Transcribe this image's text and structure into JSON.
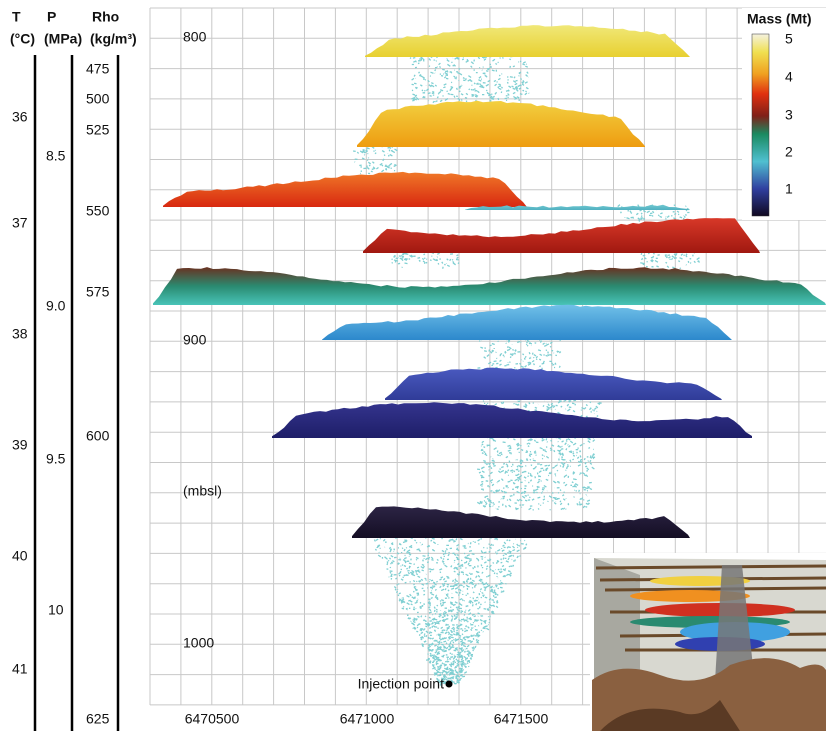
{
  "columns": {
    "temperature": {
      "title": "T",
      "unit": "(°C)",
      "ticks": [
        "36",
        "37",
        "38",
        "39",
        "40",
        "41"
      ]
    },
    "pressure": {
      "title": "P",
      "unit": "(MPa)",
      "ticks": [
        "8.5",
        "9.0",
        "9.5",
        "10"
      ]
    },
    "density": {
      "title": "Rho",
      "unit": "(kg/m³)",
      "ticks": [
        "475",
        "500",
        "525",
        "550",
        "575",
        "600",
        "625"
      ]
    }
  },
  "depth_axis": {
    "ticks": [
      "800",
      "900",
      "1000"
    ],
    "unit": "(mbsl)"
  },
  "x_axis": {
    "ticks": [
      "6470500",
      "6471000",
      "6471500"
    ]
  },
  "colorbar": {
    "title": "Mass (Mt)",
    "ticks": [
      "5",
      "4",
      "3",
      "2",
      "1"
    ]
  },
  "annotation": "Injection point"
}
